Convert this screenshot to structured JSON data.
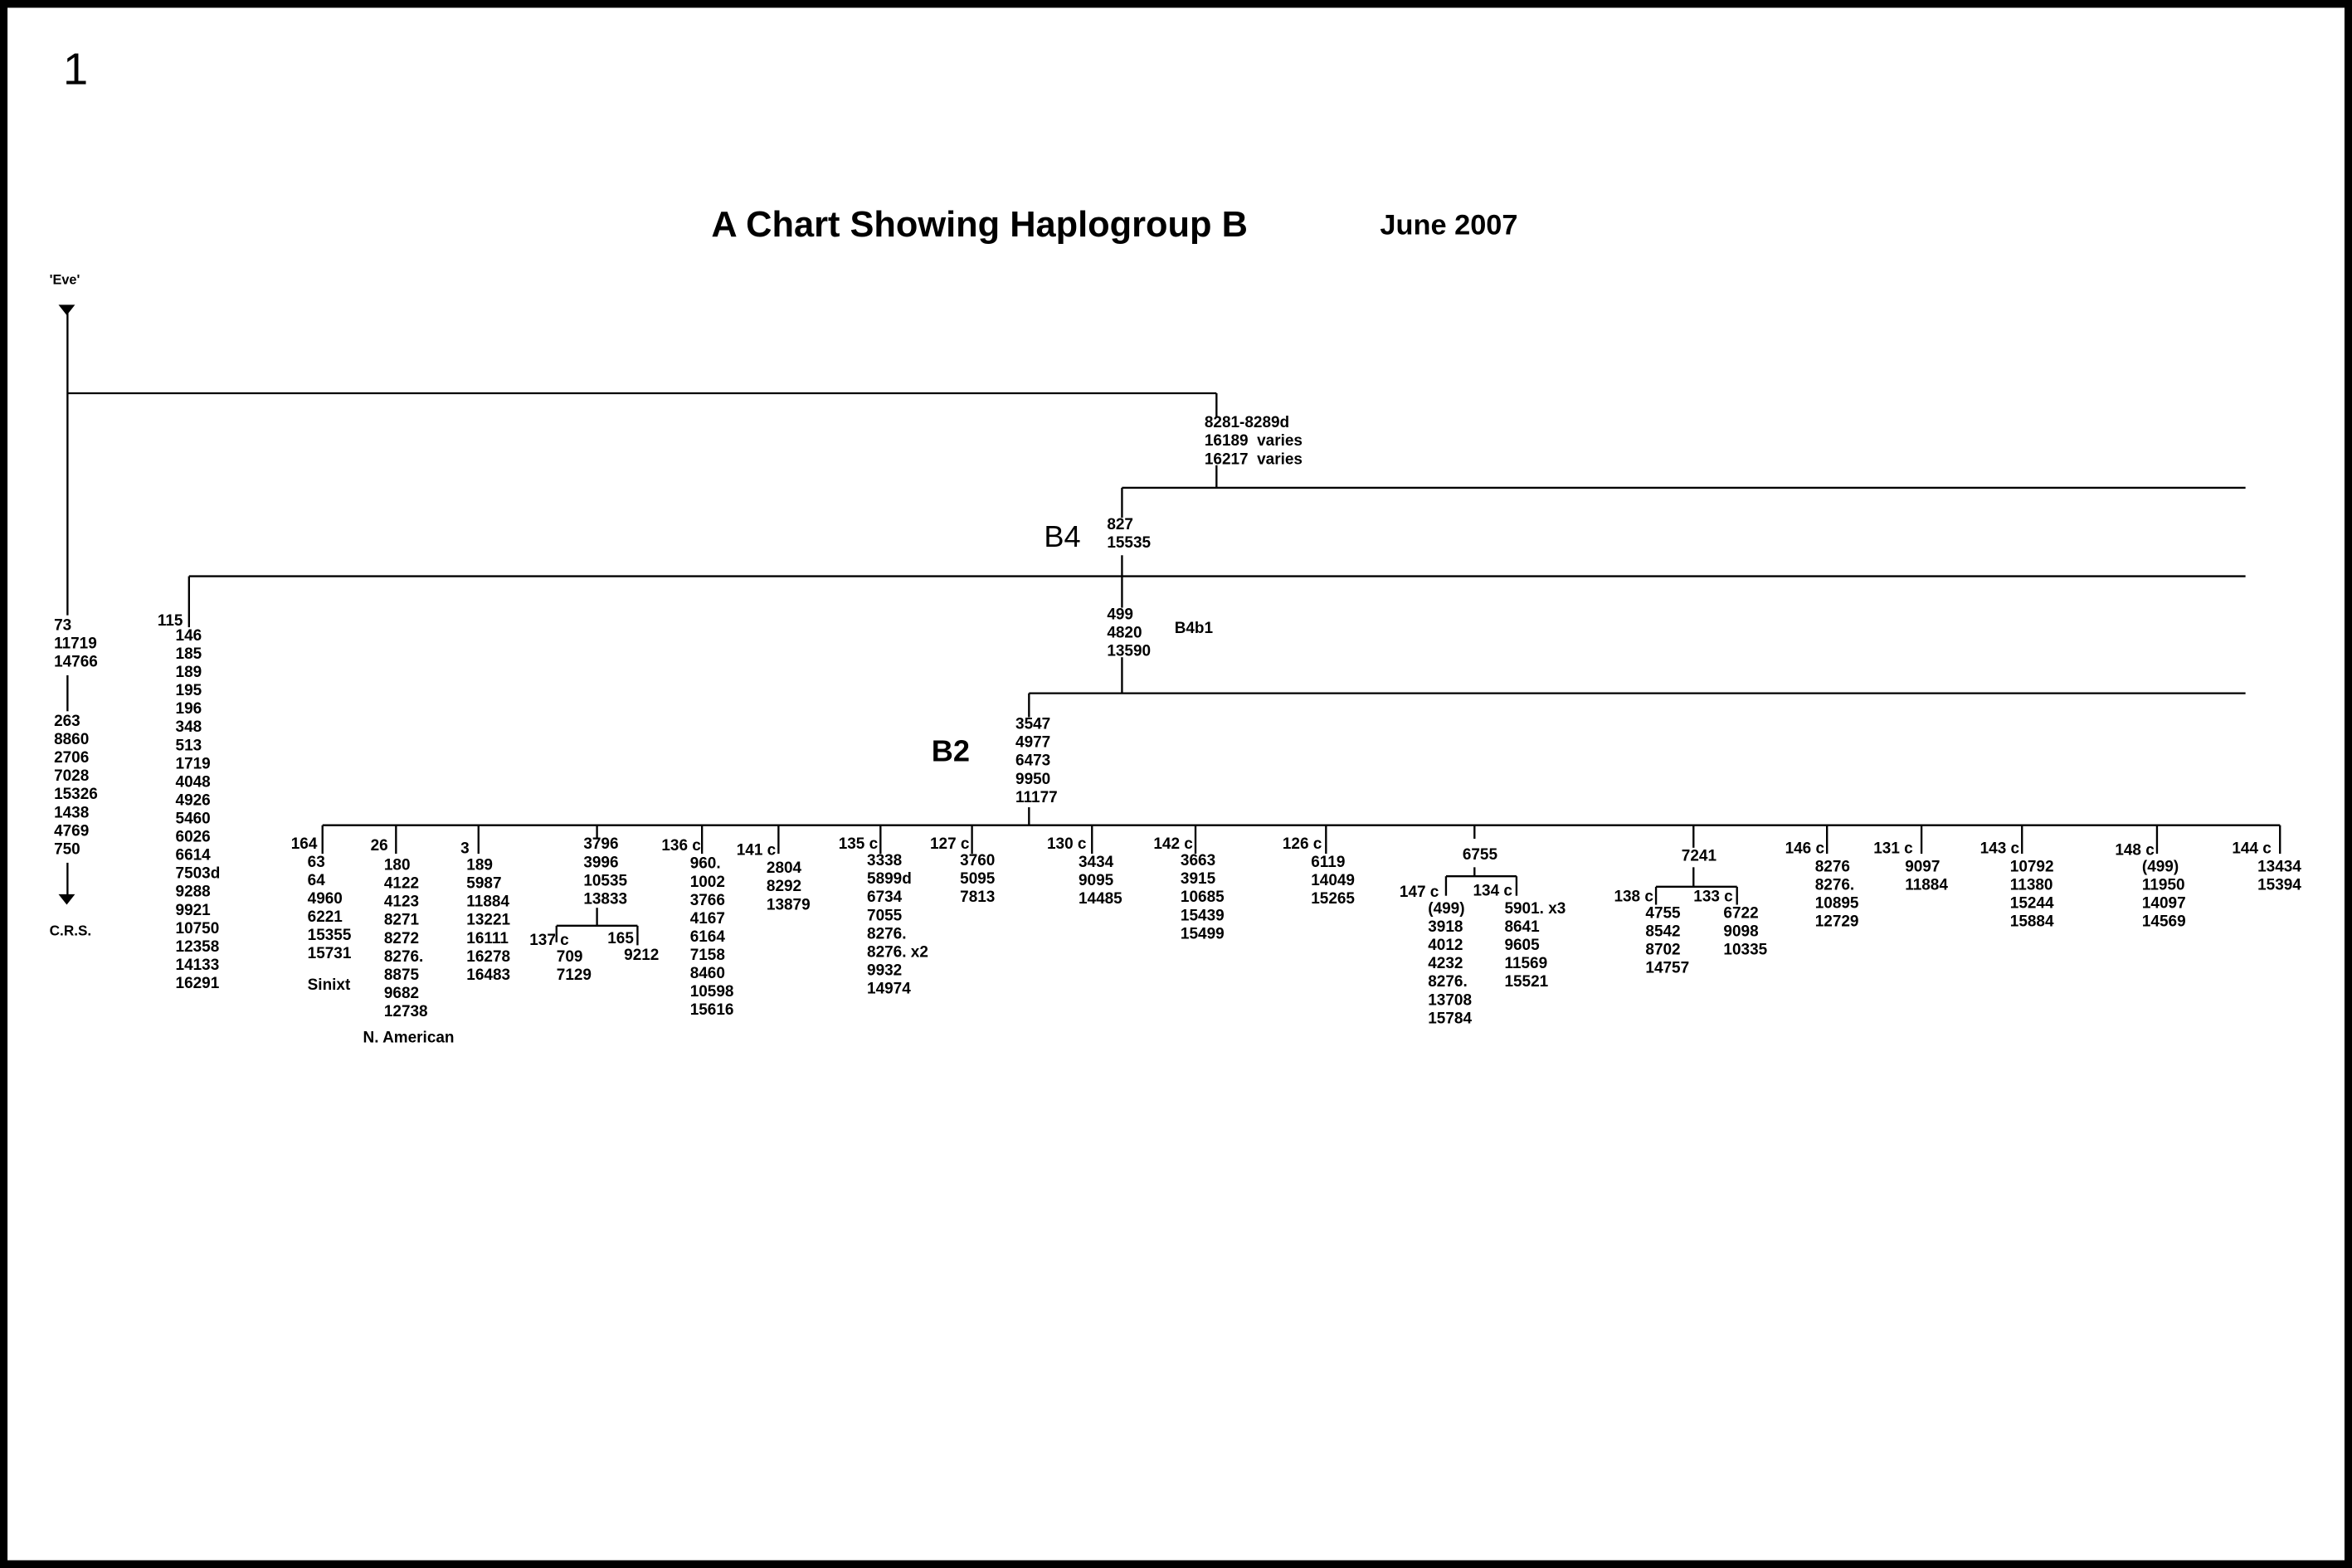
{
  "page_number": "1",
  "title": "A Chart Showing Haplogroup B",
  "date": "June 2007",
  "root": "'Eve'",
  "crs": "C.R.S.",
  "groups": [
    "B4",
    "B2",
    "B4b1"
  ],
  "blocks": [
    [
      "8281-8289d",
      "16189  varies",
      "16217  varies"
    ],
    [
      "827",
      "15535"
    ],
    [
      "499",
      "4820",
      "13590"
    ],
    [
      "73",
      "11719",
      "14766"
    ],
    [
      "263",
      "8860",
      "2706",
      "7028",
      "15326",
      "1438",
      "4769",
      "750"
    ],
    [
      "115"
    ],
    [
      "146",
      "185",
      "189",
      "195",
      "196",
      "348",
      "513",
      "1719",
      "4048",
      "4926",
      "5460",
      "6026",
      "6614",
      "7503d",
      "9288",
      "9921",
      "10750",
      "12358",
      "14133",
      "16291"
    ],
    [
      "3547",
      "4977",
      "6473",
      "9950",
      "11177"
    ],
    [
      "164"
    ],
    [
      "63",
      "64",
      "4960",
      "6221",
      "15355",
      "15731"
    ],
    [
      "Sinixt"
    ],
    [
      "26"
    ],
    [
      "180",
      "4122",
      "4123",
      "8271",
      "8272",
      "8276.",
      "8875",
      "9682",
      "12738"
    ],
    [
      "N. American"
    ],
    [
      "3"
    ],
    [
      "189",
      "5987",
      "11884",
      "13221",
      "16111",
      "16278",
      "16483"
    ],
    [
      "3796",
      "3996",
      "10535",
      "13833"
    ],
    [
      "137 c"
    ],
    [
      "709",
      "7129"
    ],
    [
      "165"
    ],
    [
      "9212"
    ],
    [
      "136 c"
    ],
    [
      "960.",
      "1002",
      "3766",
      "4167",
      "6164",
      "7158",
      "8460",
      "10598",
      "15616"
    ],
    [
      "141 c"
    ],
    [
      "2804",
      "8292",
      "13879"
    ],
    [
      "135 c"
    ],
    [
      "3338",
      "5899d",
      "6734",
      "7055",
      "8276.",
      "8276. x2",
      "9932",
      "14974"
    ],
    [
      "127 c"
    ],
    [
      "3760",
      "5095",
      "7813"
    ],
    [
      "130 c"
    ],
    [
      "3434",
      "9095",
      "14485"
    ],
    [
      "142 c"
    ],
    [
      "3663",
      "3915",
      "10685",
      "15439",
      "15499"
    ],
    [
      "126 c"
    ],
    [
      "6119",
      "14049",
      "15265"
    ],
    [
      "6755"
    ],
    [
      "147 c"
    ],
    [
      "(499)",
      "3918",
      "4012",
      "4232",
      "8276.",
      "13708",
      "15784"
    ],
    [
      "134 c"
    ],
    [
      "5901. x3",
      "8641",
      "9605",
      "11569",
      "15521"
    ],
    [
      "7241"
    ],
    [
      "138 c"
    ],
    [
      "4755",
      "8542",
      "8702",
      "14757"
    ],
    [
      "133 c"
    ],
    [
      "6722",
      "9098",
      "10335"
    ],
    [
      "146 c"
    ],
    [
      "8276",
      "8276.",
      "10895",
      "12729"
    ],
    [
      "131 c"
    ],
    [
      "9097",
      "11884"
    ],
    [
      "143 c"
    ],
    [
      "10792",
      "11380",
      "15244",
      "15884"
    ],
    [
      "148 c"
    ],
    [
      "(499)",
      "11950",
      "14097",
      "14569"
    ],
    [
      "144 c"
    ],
    [
      "13434",
      "15394"
    ]
  ]
}
